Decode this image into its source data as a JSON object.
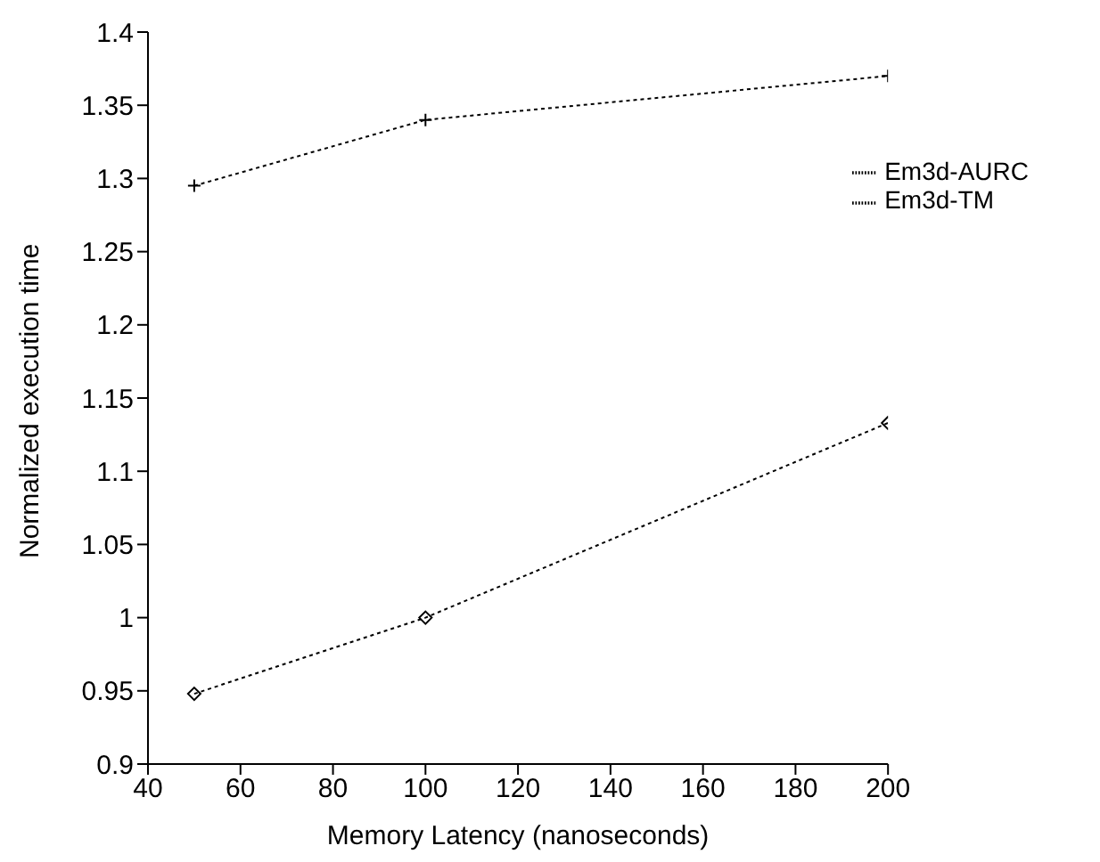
{
  "chart_data": {
    "type": "line",
    "xlabel": "Memory Latency (nanoseconds)",
    "ylabel": "Normalized execution time",
    "x": [
      50,
      100,
      200
    ],
    "series": [
      {
        "name": "Em3d-AURC",
        "color": "#000000",
        "values": [
          1.295,
          1.34,
          1.37
        ],
        "marker": "cross"
      },
      {
        "name": "Em3d-TM",
        "color": "#000000",
        "values": [
          0.948,
          1.0,
          1.133
        ],
        "marker": "diamond"
      }
    ],
    "xlim": [
      40,
      200
    ],
    "xticks": [
      40,
      60,
      80,
      100,
      120,
      140,
      160,
      180,
      200
    ],
    "ylim": [
      0.9,
      1.4
    ],
    "yticks": [
      0.9,
      0.95,
      1,
      1.05,
      1.1,
      1.15,
      1.2,
      1.25,
      1.3,
      1.35,
      1.4
    ],
    "legend": "top right",
    "line_style": "dotted",
    "grid": false
  }
}
